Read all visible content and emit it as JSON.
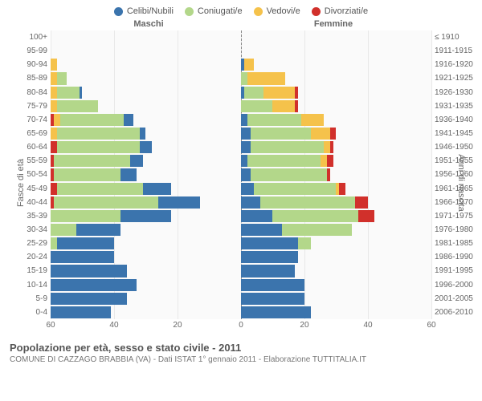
{
  "legend": [
    {
      "label": "Celibi/Nubili",
      "color": "#3b74ad"
    },
    {
      "label": "Coniugati/e",
      "color": "#b3d78a"
    },
    {
      "label": "Vedovi/e",
      "color": "#f5c24b"
    },
    {
      "label": "Divorziati/e",
      "color": "#d1302b"
    }
  ],
  "gender": {
    "male": "Maschi",
    "female": "Femmine"
  },
  "axis_titles": {
    "left": "Fasce di età",
    "right": "Anni di nascita"
  },
  "left_labels": [
    "100+",
    "95-99",
    "90-94",
    "85-89",
    "80-84",
    "75-79",
    "70-74",
    "65-69",
    "60-64",
    "55-59",
    "50-54",
    "45-49",
    "40-44",
    "35-39",
    "30-34",
    "25-29",
    "20-24",
    "15-19",
    "10-14",
    "5-9",
    "0-4"
  ],
  "right_labels": [
    "≤ 1910",
    "1911-1915",
    "1916-1920",
    "1921-1925",
    "1926-1930",
    "1931-1935",
    "1936-1940",
    "1941-1945",
    "1946-1950",
    "1951-1955",
    "1956-1960",
    "1961-1965",
    "1966-1970",
    "1971-1975",
    "1976-1980",
    "1981-1985",
    "1986-1990",
    "1991-1995",
    "1996-2000",
    "2001-2005",
    "2006-2010"
  ],
  "xlim": 60,
  "xticks": [
    60,
    40,
    20,
    0,
    20,
    40,
    60
  ],
  "rows": [
    {
      "m": [
        0,
        0,
        0,
        0
      ],
      "f": [
        0,
        0,
        0,
        0
      ]
    },
    {
      "m": [
        0,
        0,
        0,
        0
      ],
      "f": [
        0,
        0,
        0,
        0
      ]
    },
    {
      "m": [
        0,
        0,
        2,
        0
      ],
      "f": [
        1,
        0,
        3,
        0
      ]
    },
    {
      "m": [
        0,
        3,
        2,
        0
      ],
      "f": [
        0,
        2,
        12,
        0
      ]
    },
    {
      "m": [
        1,
        7,
        2,
        0
      ],
      "f": [
        1,
        6,
        10,
        1
      ]
    },
    {
      "m": [
        0,
        13,
        2,
        0
      ],
      "f": [
        0,
        10,
        7,
        1
      ]
    },
    {
      "m": [
        3,
        20,
        2,
        1
      ],
      "f": [
        2,
        17,
        7,
        0
      ]
    },
    {
      "m": [
        2,
        26,
        2,
        0
      ],
      "f": [
        3,
        19,
        6,
        2
      ]
    },
    {
      "m": [
        4,
        26,
        0,
        2
      ],
      "f": [
        3,
        23,
        2,
        1
      ]
    },
    {
      "m": [
        4,
        24,
        0,
        1
      ],
      "f": [
        2,
        23,
        2,
        2
      ]
    },
    {
      "m": [
        5,
        21,
        0,
        1
      ],
      "f": [
        3,
        24,
        0,
        1
      ]
    },
    {
      "m": [
        9,
        27,
        0,
        2
      ],
      "f": [
        4,
        26,
        1,
        2
      ]
    },
    {
      "m": [
        13,
        33,
        0,
        1
      ],
      "f": [
        6,
        30,
        0,
        4
      ]
    },
    {
      "m": [
        16,
        22,
        0,
        0
      ],
      "f": [
        10,
        27,
        0,
        5
      ]
    },
    {
      "m": [
        14,
        8,
        0,
        0
      ],
      "f": [
        13,
        22,
        0,
        0
      ]
    },
    {
      "m": [
        18,
        2,
        0,
        0
      ],
      "f": [
        18,
        4,
        0,
        0
      ]
    },
    {
      "m": [
        20,
        0,
        0,
        0
      ],
      "f": [
        18,
        0,
        0,
        0
      ]
    },
    {
      "m": [
        24,
        0,
        0,
        0
      ],
      "f": [
        17,
        0,
        0,
        0
      ]
    },
    {
      "m": [
        27,
        0,
        0,
        0
      ],
      "f": [
        20,
        0,
        0,
        0
      ]
    },
    {
      "m": [
        24,
        0,
        0,
        0
      ],
      "f": [
        20,
        0,
        0,
        0
      ]
    },
    {
      "m": [
        19,
        0,
        0,
        0
      ],
      "f": [
        22,
        0,
        0,
        0
      ]
    }
  ],
  "footer": {
    "title": "Popolazione per età, sesso e stato civile - 2011",
    "subtitle": "COMUNE DI CAZZAGO BRABBIA (VA) - Dati ISTAT 1° gennaio 2011 - Elaborazione TUTTITALIA.IT"
  },
  "styling": {
    "background_color": "#fafafa",
    "grid_color": "#e8e8e8",
    "centerline_color": "#888888",
    "label_fontsize": 10,
    "legend_fontsize": 11
  }
}
